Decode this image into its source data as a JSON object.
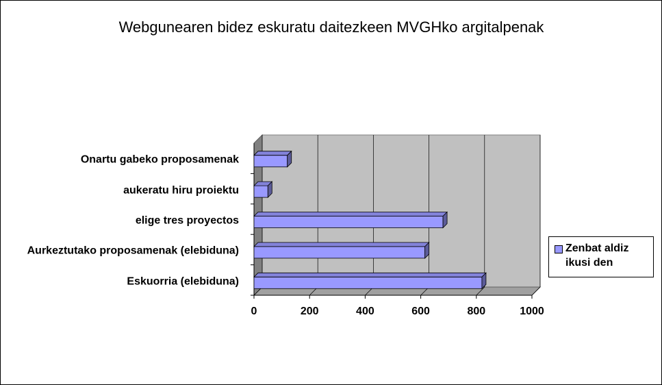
{
  "chart_data": {
    "type": "bar3d_horizontal",
    "title": "Webgunearen bidez eskuratu daitezkeen MVGHko argitalpenak",
    "categories": [
      "Eskuorria (elebiduna)",
      "Aurkeztutako proposamenak (elebiduna)",
      "elige tres proyectos",
      "aukeratu hiru proiektu",
      "Onartu gabeko proposamenak"
    ],
    "series": [
      {
        "name": "Zenbat aldiz ikusi den",
        "color": "#9999ff",
        "values": [
          820,
          615,
          680,
          50,
          120
        ]
      }
    ],
    "xlim": [
      0,
      1000
    ],
    "xticks": [
      0,
      200,
      400,
      600,
      800,
      1000
    ],
    "grid": true,
    "legend": "right"
  }
}
